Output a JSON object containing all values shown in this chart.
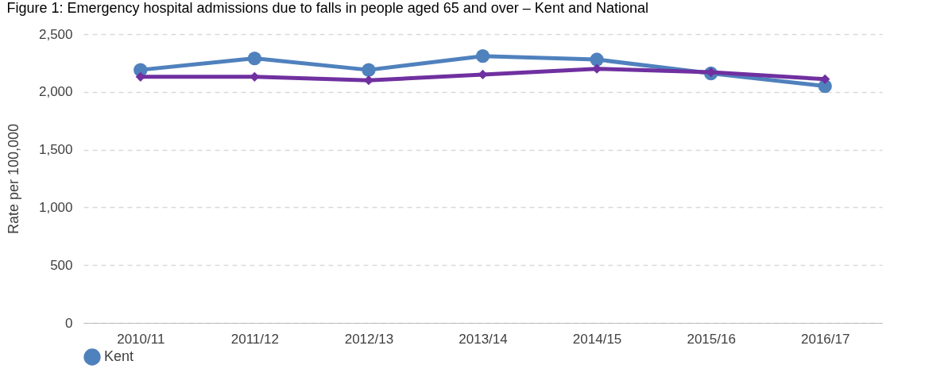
{
  "chart_data": {
    "type": "line",
    "title": "Figure 1: Emergency hospital admissions due to falls in people aged 65 and over – Kent and National",
    "ylabel": "Rate per 100,000",
    "categories": [
      "2010/11",
      "2011/12",
      "2012/13",
      "2013/14",
      "2014/15",
      "2015/16",
      "2016/17"
    ],
    "series": [
      {
        "name": "Kent",
        "color": "#4f81bd",
        "marker": "circle",
        "values": [
          2190,
          2290,
          2190,
          2310,
          2280,
          2160,
          2050
        ]
      },
      {
        "color": "#7030a0",
        "marker": "diamond",
        "values": [
          2130,
          2130,
          2100,
          2150,
          2200,
          2170,
          2110
        ]
      }
    ],
    "ylim": [
      0,
      2500
    ],
    "yticks": [
      0,
      500,
      {
        "value": 1000,
        "label": "1,000"
      },
      {
        "value": 1500,
        "label": "1,500"
      },
      {
        "value": 2000,
        "label": "2,000"
      },
      {
        "value": 2500,
        "label": "2,500"
      }
    ],
    "grid": "y",
    "legend": "bottom"
  }
}
